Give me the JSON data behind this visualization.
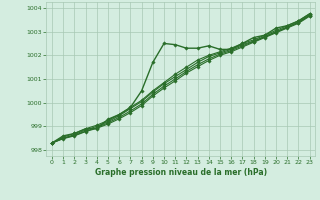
{
  "xlabel": "Graphe pression niveau de la mer (hPa)",
  "x_hours": [
    0,
    1,
    2,
    3,
    4,
    5,
    6,
    7,
    8,
    9,
    10,
    11,
    12,
    13,
    14,
    15,
    16,
    17,
    18,
    19,
    20,
    21,
    22,
    23
  ],
  "series_noisy": [
    998.3,
    998.6,
    998.7,
    998.9,
    998.9,
    999.3,
    999.5,
    999.8,
    1000.5,
    1001.7,
    1002.5,
    1002.45,
    1002.3,
    1002.3,
    1002.4,
    1002.25,
    1002.25,
    1002.5,
    1002.75,
    1002.85,
    1003.15,
    1003.25,
    1003.45,
    1003.75
  ],
  "series_smooth1": [
    998.3,
    998.55,
    998.7,
    998.9,
    999.05,
    999.25,
    999.5,
    999.8,
    1000.1,
    1000.5,
    1000.85,
    1001.2,
    1001.5,
    1001.8,
    1002.0,
    1002.15,
    1002.3,
    1002.5,
    1002.65,
    1002.85,
    1003.05,
    1003.25,
    1003.45,
    1003.75
  ],
  "series_smooth2": [
    998.3,
    998.5,
    998.65,
    998.85,
    999.0,
    999.2,
    999.45,
    999.75,
    1000.05,
    1000.45,
    1000.8,
    1001.1,
    1001.4,
    1001.7,
    1001.95,
    1002.1,
    1002.25,
    1002.45,
    1002.6,
    1002.8,
    1003.0,
    1003.2,
    1003.4,
    1003.7
  ],
  "series_smooth3": [
    998.3,
    998.5,
    998.62,
    998.8,
    998.95,
    999.15,
    999.38,
    999.65,
    999.95,
    1000.35,
    1000.7,
    1001.0,
    1001.32,
    1001.6,
    1001.85,
    1002.05,
    1002.2,
    1002.4,
    1002.58,
    1002.78,
    1002.98,
    1003.18,
    1003.38,
    1003.68
  ],
  "series_smooth4": [
    998.3,
    998.48,
    998.6,
    998.78,
    998.92,
    999.1,
    999.32,
    999.58,
    999.88,
    1000.28,
    1000.62,
    1000.92,
    1001.25,
    1001.52,
    1001.78,
    1002.0,
    1002.15,
    1002.35,
    1002.55,
    1002.75,
    1002.95,
    1003.15,
    1003.35,
    1003.65
  ],
  "ylim": [
    997.75,
    1004.25
  ],
  "yticks": [
    998,
    999,
    1000,
    1001,
    1002,
    1003,
    1004
  ],
  "line_color": "#2a6e2a",
  "bg_color": "#d4ede0",
  "grid_color": "#a8c8b4",
  "tick_label_color": "#2a6e2a",
  "markersize": 1.8,
  "linewidth_noisy": 1.0,
  "linewidth_smooth": 0.8
}
